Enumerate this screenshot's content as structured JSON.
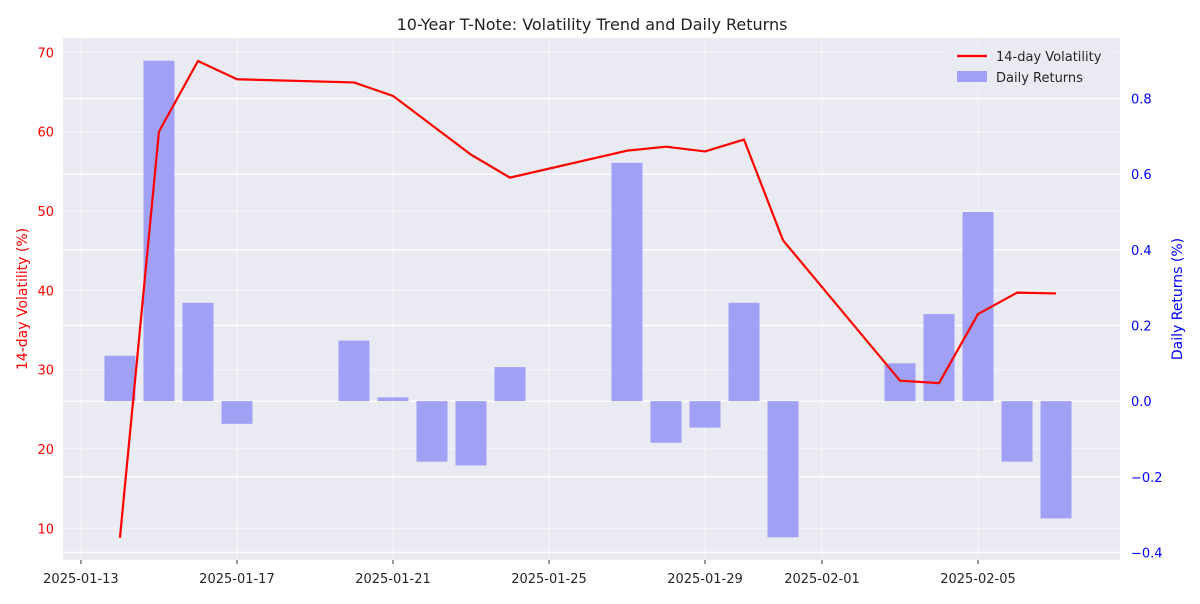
{
  "chart_data": {
    "type": "bar+line",
    "title": "10-Year T-Note: Volatility Trend and Daily Returns",
    "x": [
      "2025-01-14",
      "2025-01-15",
      "2025-01-16",
      "2025-01-17",
      "2025-01-20",
      "2025-01-21",
      "2025-01-22",
      "2025-01-23",
      "2025-01-24",
      "2025-01-27",
      "2025-01-28",
      "2025-01-29",
      "2025-01-30",
      "2025-01-31",
      "2025-02-03",
      "2025-02-04",
      "2025-02-05",
      "2025-02-06",
      "2025-02-07"
    ],
    "series": [
      {
        "name": "14-day Volatility",
        "axis": "left",
        "type": "line",
        "color": "#ff0000",
        "values": [
          8.8,
          60.0,
          68.9,
          66.6,
          66.2,
          64.5,
          60.8,
          57.1,
          54.2,
          57.6,
          58.1,
          57.5,
          59.0,
          46.3,
          28.6,
          28.3,
          37.0,
          39.7,
          39.6
        ]
      },
      {
        "name": "Daily Returns",
        "axis": "right",
        "type": "bar",
        "color": "#a0a0f5",
        "values": [
          0.12,
          0.9,
          0.26,
          -0.06,
          0.16,
          0.01,
          -0.16,
          -0.17,
          0.09,
          0.63,
          -0.11,
          -0.07,
          0.26,
          -0.36,
          0.1,
          0.23,
          0.5,
          -0.16,
          -0.31
        ]
      }
    ],
    "xlabel": "",
    "ylabel": "14-day Volatility (%)",
    "y2label": "Daily Returns (%)",
    "xticks": [
      "2025-01-13",
      "2025-01-17",
      "2025-01-21",
      "2025-01-25",
      "2025-01-29",
      "2025-02-01",
      "2025-02-05"
    ],
    "yticks": [
      10,
      20,
      30,
      40,
      50,
      60,
      70
    ],
    "y2ticks": [
      -0.4,
      -0.2,
      0.0,
      0.2,
      0.4,
      0.6,
      0.8
    ],
    "y2ticklabels": [
      "−0.4",
      "−0.2",
      "0.0",
      "0.2",
      "0.4",
      "0.6",
      "0.8"
    ],
    "ylim": [
      6.0,
      71.8
    ],
    "y2lim": [
      -0.42,
      0.96
    ],
    "xlim_days_from_2025_01_13": [
      -0.46,
      26.64
    ],
    "grid": true,
    "legend": "top-right"
  }
}
